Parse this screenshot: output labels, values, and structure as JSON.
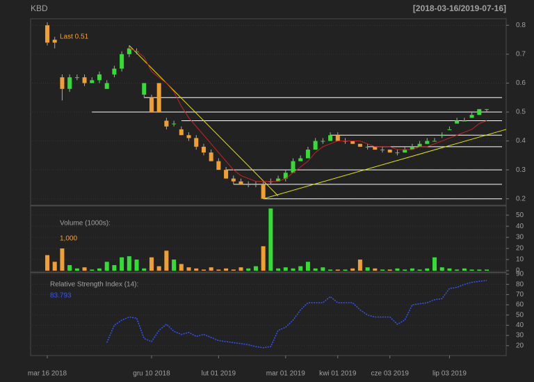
{
  "chart_data": [
    {
      "type": "candlestick",
      "title": "KBD",
      "subtitle": "[2018-03-16/2019-07-16]",
      "last_label": "Last 0.51",
      "categories": [
        "mar 16 2018",
        null,
        null,
        null,
        null,
        null,
        null,
        null,
        null,
        null,
        null,
        null,
        null,
        null,
        "gru 10 2018",
        null,
        null,
        null,
        null,
        null,
        null,
        null,
        null,
        "lut 01 2019",
        null,
        null,
        null,
        null,
        null,
        null,
        null,
        null,
        "mar 01 2019",
        null,
        null,
        null,
        null,
        null,
        null,
        "kwi 01 2019",
        null,
        null,
        null,
        null,
        null,
        null,
        "cze 03 2019",
        null,
        null,
        null,
        null,
        null,
        null,
        null,
        "lip 03 2019",
        null,
        null,
        null,
        null,
        null
      ],
      "open": [
        0.8,
        0.75,
        0.62,
        0.58,
        0.62,
        0.62,
        0.6,
        0.61,
        0.58,
        0.63,
        0.65,
        0.7,
        0.71,
        0.56,
        0.55,
        0.6,
        0.47,
        0.46,
        0.44,
        0.42,
        0.41,
        0.38,
        0.36,
        0.33,
        0.3,
        0.27,
        0.26,
        0.25,
        0.25,
        0.25,
        0.26,
        0.26,
        0.27,
        0.29,
        0.33,
        0.34,
        0.37,
        0.4,
        0.4,
        0.42,
        0.4,
        0.4,
        0.39,
        0.38,
        0.38,
        0.37,
        0.37,
        0.36,
        0.36,
        0.37,
        0.38,
        0.39,
        0.4,
        0.42,
        0.44,
        0.46,
        0.47,
        0.48,
        0.49,
        0.51
      ],
      "high": [
        0.81,
        0.76,
        0.63,
        0.63,
        0.63,
        0.63,
        0.62,
        0.64,
        0.61,
        0.66,
        0.71,
        0.73,
        0.72,
        0.6,
        0.56,
        0.6,
        0.48,
        0.47,
        0.45,
        0.43,
        0.42,
        0.39,
        0.37,
        0.34,
        0.31,
        0.28,
        0.27,
        0.26,
        0.26,
        0.26,
        0.27,
        0.28,
        0.3,
        0.34,
        0.35,
        0.38,
        0.41,
        0.41,
        0.43,
        0.43,
        0.41,
        0.4,
        0.39,
        0.39,
        0.38,
        0.38,
        0.37,
        0.37,
        0.38,
        0.39,
        0.4,
        0.41,
        0.41,
        0.43,
        0.45,
        0.48,
        0.48,
        0.5,
        0.51,
        0.51
      ],
      "low": [
        0.73,
        0.72,
        0.54,
        0.57,
        0.61,
        0.59,
        0.6,
        0.6,
        0.58,
        0.62,
        0.64,
        0.69,
        0.7,
        0.55,
        0.5,
        0.5,
        0.44,
        0.45,
        0.42,
        0.4,
        0.37,
        0.35,
        0.33,
        0.3,
        0.27,
        0.25,
        0.25,
        0.24,
        0.24,
        0.2,
        0.25,
        0.26,
        0.26,
        0.29,
        0.33,
        0.34,
        0.37,
        0.39,
        0.4,
        0.4,
        0.39,
        0.39,
        0.38,
        0.37,
        0.37,
        0.36,
        0.36,
        0.35,
        0.36,
        0.37,
        0.38,
        0.39,
        0.4,
        0.41,
        0.44,
        0.46,
        0.47,
        0.48,
        0.49,
        0.5
      ],
      "close": [
        0.74,
        0.74,
        0.58,
        0.62,
        0.62,
        0.6,
        0.61,
        0.63,
        0.6,
        0.65,
        0.7,
        0.72,
        0.71,
        0.6,
        0.5,
        0.5,
        0.45,
        0.46,
        0.42,
        0.41,
        0.38,
        0.36,
        0.33,
        0.3,
        0.27,
        0.26,
        0.25,
        0.25,
        0.25,
        0.2,
        0.26,
        0.27,
        0.29,
        0.33,
        0.34,
        0.37,
        0.4,
        0.4,
        0.42,
        0.4,
        0.4,
        0.39,
        0.38,
        0.38,
        0.37,
        0.37,
        0.36,
        0.36,
        0.37,
        0.38,
        0.39,
        0.4,
        0.4,
        0.42,
        0.44,
        0.47,
        0.47,
        0.49,
        0.51,
        0.51
      ],
      "moving_average": [
        null,
        null,
        null,
        null,
        null,
        null,
        null,
        null,
        null,
        null,
        null,
        0.72,
        0.71,
        0.69,
        0.64,
        0.62,
        0.6,
        0.57,
        0.52,
        0.48,
        0.45,
        0.42,
        0.39,
        0.36,
        0.33,
        0.3,
        0.28,
        0.27,
        0.26,
        0.26,
        0.26,
        0.26,
        0.27,
        0.29,
        0.31,
        0.33,
        0.36,
        0.38,
        0.39,
        0.4,
        0.4,
        0.4,
        0.4,
        0.39,
        0.38,
        0.38,
        0.38,
        0.37,
        0.37,
        0.37,
        0.38,
        0.38,
        0.39,
        0.4,
        0.41,
        0.42,
        0.43,
        0.44,
        0.46,
        0.47
      ],
      "levels": [
        {
          "value": 0.55,
          "start": 13
        },
        {
          "value": 0.5,
          "start": 6
        },
        {
          "value": 0.47,
          "start": 18
        },
        {
          "value": 0.42,
          "start": 38
        },
        {
          "value": 0.38,
          "start": 43
        },
        {
          "value": 0.3,
          "start": 24
        },
        {
          "value": 0.25,
          "start": 25
        },
        {
          "value": 0.2,
          "start": 29
        }
      ],
      "trendlines": [
        {
          "x": [
            11,
            31
          ],
          "y": [
            0.73,
            0.21
          ]
        },
        {
          "x": [
            29,
            61.7
          ],
          "y": [
            0.2,
            0.44
          ]
        }
      ],
      "up_color": "#33dd33",
      "down_color": "#f0a030",
      "ma_color": "#cc2222",
      "level_color": "#ffffff",
      "trend_color": "#e6e600",
      "ylim": [
        0.18,
        0.82
      ],
      "yticks": [
        0.2,
        0.3,
        0.4,
        0.5,
        0.6,
        0.7,
        0.8
      ],
      "grid": true
    },
    {
      "type": "bar",
      "title": "Volume (1000s):",
      "last_label": "1,000",
      "values": [
        14,
        8,
        20,
        5,
        2,
        3,
        1,
        2,
        8,
        5,
        12,
        13,
        10,
        2,
        12,
        4,
        18,
        10,
        6,
        3,
        2,
        1,
        3,
        1,
        2,
        1,
        3,
        2,
        4,
        22,
        56,
        2,
        3,
        2,
        4,
        8,
        2,
        3,
        1,
        1,
        1,
        2,
        10,
        3,
        2,
        1,
        1,
        2,
        1,
        2,
        1,
        2,
        12,
        3,
        2,
        1,
        2,
        1,
        1,
        1
      ],
      "ylim": [
        0,
        57
      ],
      "yticks": [
        0,
        10,
        20,
        30,
        40,
        50
      ],
      "grid": true
    },
    {
      "type": "line",
      "title": "Relative Strength Index (14):",
      "last_label": "83.793",
      "color": "#3355ff",
      "values": [
        null,
        null,
        null,
        null,
        null,
        null,
        null,
        null,
        23,
        40,
        45,
        48,
        47,
        27,
        24,
        35,
        41,
        34,
        31,
        33,
        29,
        31,
        28,
        25,
        24,
        23,
        22,
        21,
        19,
        18,
        19,
        35,
        38,
        45,
        55,
        62,
        62,
        62,
        68,
        62,
        62,
        62,
        55,
        50,
        48,
        48,
        48,
        41,
        45,
        60,
        61,
        62,
        65,
        66,
        76,
        77,
        80,
        82,
        83,
        83.793
      ],
      "ylim": [
        11,
        90
      ],
      "yticks": [
        20,
        30,
        40,
        50,
        60,
        70,
        80,
        90
      ],
      "grid": true
    }
  ]
}
